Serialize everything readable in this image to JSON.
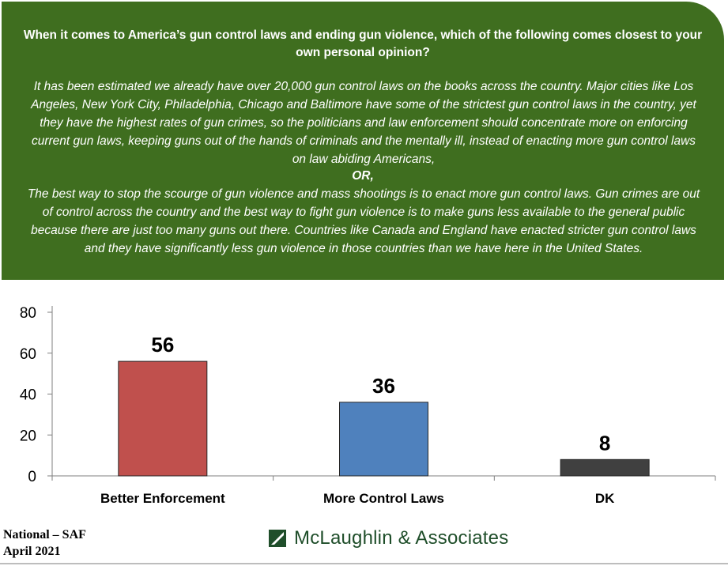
{
  "header": {
    "question": "When it comes to America’s gun control laws and ending gun violence, which of the following comes closest to your own personal opinion?",
    "option_a": "It has been estimated we already have over 20,000 gun control laws on the books across the country.  Major cities like Los Angeles, New York City, Philadelphia, Chicago and Baltimore have some of the strictest gun control laws in the country, yet they have the highest rates of gun crimes, so the politicians and law enforcement should concentrate more on enforcing current gun laws, keeping guns out of the hands of criminals and the mentally ill,  instead of enacting more gun control laws on law abiding Americans,",
    "or_label": "OR,",
    "option_b": "The best way to stop the scourge of gun violence and mass shootings is to enact more gun control laws.  Gun crimes are out of control across the country and the best way to fight gun violence is to make guns less available to the general public because there are just too many guns out there.  Countries like Canada and England have enacted stricter gun control laws and they have significantly less gun violence in those countries than we have here in the United States."
  },
  "chart_data": {
    "type": "bar",
    "categories": [
      "Better Enforcement",
      "More Control Laws",
      "DK"
    ],
    "values": [
      56,
      36,
      8
    ],
    "data_labels": [
      "56",
      "36",
      "8"
    ],
    "colors": [
      "#c0504d",
      "#4f81bd",
      "#404040"
    ],
    "yticks": [
      0,
      20,
      40,
      60,
      80
    ],
    "ytick_labels": [
      "0",
      "20",
      "40",
      "60",
      "80"
    ],
    "ylim": [
      0,
      80
    ],
    "grid": false,
    "legend": "none"
  },
  "footer": {
    "line1": "National – SAF",
    "line2": "April 2021",
    "logo_text": "McLaughlin & Associates",
    "logo_color": "#1f4e2a"
  },
  "colors": {
    "header_bg": "#3f6e1f"
  }
}
